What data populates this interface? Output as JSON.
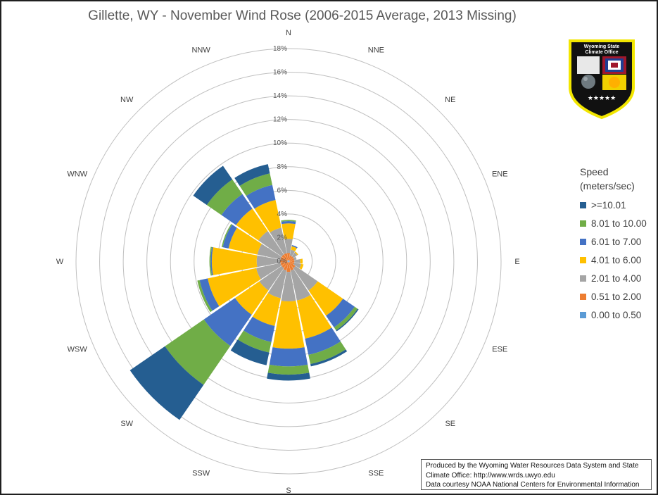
{
  "chart_data": {
    "type": "wind-rose",
    "title": "Gillette, WY - November Wind Rose (2006-2015 Average, 2013 Missing)",
    "radial_ticks": [
      "0%",
      "2%",
      "4%",
      "6%",
      "8%",
      "10%",
      "12%",
      "14%",
      "16%",
      "18%"
    ],
    "radial_max": 18,
    "directions": [
      "N",
      "NNE",
      "NE",
      "ENE",
      "E",
      "ESE",
      "SE",
      "SSE",
      "S",
      "SSW",
      "SW",
      "WSW",
      "W",
      "WNW",
      "NW",
      "NNW"
    ],
    "legend_title_line1": "Speed",
    "legend_title_line2": "(meters/sec)",
    "series": [
      {
        "name": "0.00 to 0.50",
        "color": "#5b9bd5",
        "values": [
          0.1,
          0.1,
          0.1,
          0.1,
          0.1,
          0.1,
          0.1,
          0.1,
          0.1,
          0.1,
          0.1,
          0.1,
          0.1,
          0.1,
          0.1,
          0.1
        ]
      },
      {
        "name": "0.51 to 2.00",
        "color": "#ed7d31",
        "values": [
          0.6,
          0.4,
          0.4,
          0.4,
          0.4,
          0.4,
          0.6,
          0.7,
          0.8,
          0.7,
          0.6,
          0.6,
          0.6,
          0.6,
          0.6,
          0.6
        ]
      },
      {
        "name": "2.01 to 4.00",
        "color": "#a5a5a5",
        "values": [
          1.2,
          0.5,
          0.4,
          0.2,
          0.5,
          0.6,
          2.3,
          2.6,
          2.5,
          2.4,
          2.3,
          2.1,
          2.0,
          2.0,
          2.4,
          2.2
        ]
      },
      {
        "name": "4.01 to 6.00",
        "color": "#ffc000",
        "values": [
          1.3,
          0.3,
          0.1,
          0.0,
          0.2,
          0.2,
          2.6,
          3.3,
          4.0,
          2.4,
          2.5,
          4.2,
          3.8,
          2.5,
          2.3,
          2.4
        ]
      },
      {
        "name": "6.01 to 7.00",
        "color": "#4472c4",
        "values": [
          0.2,
          0.1,
          0.0,
          0.0,
          0.0,
          0.0,
          1.2,
          1.4,
          1.5,
          1.4,
          3.2,
          0.7,
          0.1,
          0.5,
          1.5,
          1.3
        ]
      },
      {
        "name": "8.01 to 10.00",
        "color": "#70ad47",
        "values": [
          0.1,
          0.0,
          0.0,
          0.0,
          0.0,
          0.0,
          0.3,
          0.8,
          0.7,
          0.9,
          4.0,
          0.2,
          0.1,
          0.1,
          1.5,
          1.0
        ]
      },
      {
        "name": ">=10.01",
        "color": "#255e91",
        "values": [
          0.0,
          0.0,
          0.0,
          0.0,
          0.0,
          0.0,
          0.1,
          0.2,
          0.5,
          1.1,
          3.6,
          0.0,
          0.0,
          0.0,
          1.4,
          0.8
        ]
      }
    ]
  },
  "logo": {
    "text_line1": "Wyoming State",
    "text_line2": "Climate Office",
    "stars": "★★★★★"
  },
  "credits": {
    "line1": "Produced by the Wyoming Water Resources Data System and State",
    "line2": "Climate Office: http://www.wrds.uwyo.edu",
    "line3": "Data courtesy NOAA National Centers for Environmental Information"
  }
}
